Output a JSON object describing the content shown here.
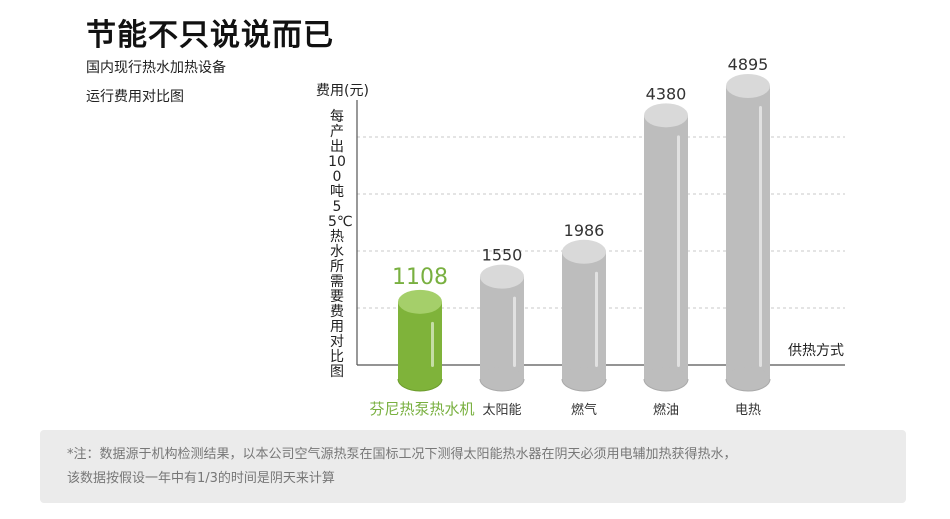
{
  "headline": "节能不只说说而已",
  "subtitle_line1": "国内现行热水加热设备",
  "subtitle_line2": "运行费用对比图",
  "note": {
    "line1": "*注：数据源于机构检测结果，以本公司空气源热泵在国标工况下测得太阳能热水器在阴天必须用电辅加热获得热水，",
    "line2": "该数据按假设一年中有1/3的时间是阴天来计算"
  },
  "chart_data": {
    "type": "bar",
    "title": "",
    "ylabel": "费用(元)",
    "y_description": "每产出100吨55℃热水所需要费用对比图",
    "xlabel": "供热方式",
    "categories": [
      "芬尼热泵热水机",
      "太阳能",
      "燃气",
      "燃油",
      "电热"
    ],
    "values": [
      1108,
      1550,
      1986,
      4380,
      4895
    ],
    "ylim": [
      0,
      5000
    ],
    "grid": true,
    "highlight_index": 0,
    "colors": {
      "highlight": "#87b93f",
      "highlight_label": "#79b040",
      "bar": "#c4c4c4",
      "value_label": "#333333"
    }
  }
}
